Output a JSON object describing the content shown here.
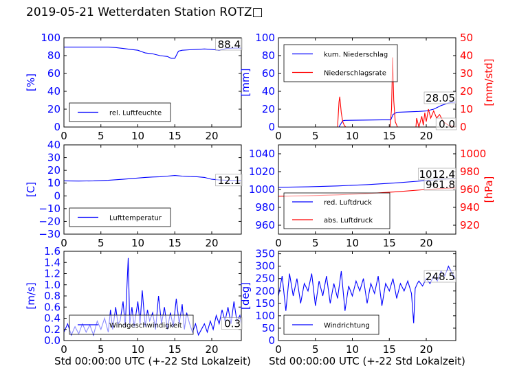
{
  "page_title": "2019-05-21 Wetterdaten Station ROTZ□",
  "colors": {
    "primary": "#0000ff",
    "secondary": "#ff0000",
    "axis": "#000000"
  },
  "chart_data": [
    {
      "id": "humidity",
      "type": "line",
      "ylabel": "[%]",
      "xlim": [
        0,
        24
      ],
      "ylim": [
        0,
        100
      ],
      "xticks": [
        "0",
        "5",
        "10",
        "15",
        "20"
      ],
      "yticks": [
        "0",
        "20",
        "40",
        "60",
        "80",
        "100"
      ],
      "legend": [
        "rel. Luftfeuchte"
      ],
      "current_label": "88.4",
      "series": [
        {
          "name": "rel. Luftfeuchte",
          "color": "#0000ff",
          "x": [
            0,
            2,
            4,
            6,
            7,
            8,
            9,
            10,
            11,
            12,
            13,
            14,
            14.5,
            15,
            15.5,
            16,
            17,
            18,
            19,
            20,
            21,
            22,
            23,
            24
          ],
          "y": [
            89.5,
            89.5,
            89.5,
            89.5,
            89,
            88,
            87,
            86,
            83,
            82,
            80,
            79,
            77,
            77,
            85,
            86,
            86.5,
            87,
            87.5,
            87,
            86,
            88,
            88.4,
            88.4
          ]
        }
      ]
    },
    {
      "id": "precip",
      "type": "line",
      "ylabel": "[mm]",
      "y2label": "[mm/std]",
      "xlim": [
        0,
        24
      ],
      "ylim": [
        0,
        100
      ],
      "y2lim": [
        0,
        50
      ],
      "xticks": [
        "0",
        "5",
        "10",
        "15",
        "20"
      ],
      "yticks": [
        "0",
        "20",
        "40",
        "60",
        "80",
        "100"
      ],
      "y2ticks": [
        "0",
        "10",
        "20",
        "30",
        "40",
        "50"
      ],
      "legend": [
        "kum. Niederschlag",
        "Niederschlagsrate"
      ],
      "current_labels": [
        "28.05",
        "0.0"
      ],
      "series": [
        {
          "name": "kum. Niederschlag",
          "color": "#0000ff",
          "axis": "left",
          "x": [
            0,
            8.2,
            8.4,
            8.7,
            9,
            14,
            15.2,
            15.5,
            16,
            19,
            20,
            21,
            22,
            23,
            24
          ],
          "y": [
            0,
            0,
            3,
            7,
            7.5,
            8,
            8,
            14,
            16.5,
            17.5,
            18,
            20,
            24,
            27,
            28.05
          ]
        },
        {
          "name": "Niederschlagsrate",
          "color": "#ff0000",
          "axis": "right",
          "x": [
            0,
            8.0,
            8.2,
            8.3,
            8.5,
            8.7,
            8.9,
            9.1,
            15.1,
            15.3,
            15.45,
            15.6,
            15.8,
            16.1,
            18.6,
            18.7,
            19.0,
            19.4,
            19.6,
            19.8,
            20.0,
            20.3,
            20.6,
            21.0,
            21.4,
            21.8,
            22.3,
            23.0,
            24.0
          ],
          "y": [
            0,
            0,
            14,
            17,
            8,
            3,
            1,
            0,
            0,
            10,
            39,
            15,
            3,
            0,
            0,
            5,
            0,
            6,
            1,
            8,
            3,
            10,
            5,
            9,
            5,
            7,
            3,
            1,
            0
          ]
        }
      ]
    },
    {
      "id": "temperature",
      "type": "line",
      "ylabel": "[C]",
      "xlim": [
        0,
        24
      ],
      "ylim": [
        -30,
        40
      ],
      "xticks": [
        "0",
        "5",
        "10",
        "15",
        "20"
      ],
      "yticks": [
        "−30",
        "−20",
        "−10",
        "0",
        "10",
        "20",
        "30",
        "40"
      ],
      "legend": [
        "Lufttemperatur"
      ],
      "current_label": "12.1",
      "series": [
        {
          "name": "Lufttemperatur",
          "color": "#0000ff",
          "x": [
            0,
            2,
            4,
            6,
            8,
            9,
            10,
            11,
            12,
            13,
            14,
            15,
            16,
            17,
            18,
            19,
            20,
            21,
            22,
            23,
            24
          ],
          "y": [
            11.8,
            11.6,
            11.8,
            12.2,
            13,
            13.5,
            14,
            14.5,
            14.8,
            15,
            15.5,
            16,
            15.5,
            15.2,
            15,
            14.5,
            13,
            12.5,
            12.2,
            12.1,
            12.1
          ]
        }
      ]
    },
    {
      "id": "pressure",
      "type": "line",
      "y2label": "[hPa]",
      "xlim": [
        0,
        24
      ],
      "ylim": [
        950,
        1050
      ],
      "y2lim": [
        910,
        1010
      ],
      "xticks": [
        "0",
        "5",
        "10",
        "15",
        "20"
      ],
      "yticks": [
        "960",
        "980",
        "1000",
        "1020",
        "1040"
      ],
      "y2ticks": [
        "920",
        "940",
        "960",
        "980",
        "1000"
      ],
      "legend": [
        "red. Luftdruck",
        "abs. Luftdruck"
      ],
      "current_labels": [
        "1012.4",
        "961.8"
      ],
      "series": [
        {
          "name": "red. Luftdruck",
          "color": "#0000ff",
          "axis": "left",
          "x": [
            0,
            4,
            8,
            12,
            16,
            20,
            22,
            24
          ],
          "y": [
            1002.5,
            1003,
            1004,
            1005.5,
            1007.5,
            1010,
            1011.5,
            1012.4
          ]
        },
        {
          "name": "abs. Luftdruck",
          "color": "#ff0000",
          "axis": "right",
          "x": [
            0,
            4,
            8,
            12,
            16,
            20,
            22,
            24
          ],
          "y": [
            952.5,
            953,
            954,
            955.5,
            957.5,
            960,
            961,
            961.8
          ]
        }
      ]
    },
    {
      "id": "wind",
      "type": "line",
      "ylabel": "[m/s]",
      "xlabel": "Std 00:00:00 UTC (+-22 Std Lokalzeit)",
      "xlim": [
        0,
        24
      ],
      "ylim": [
        0,
        1.6
      ],
      "xticks": [
        "0",
        "5",
        "10",
        "15",
        "20"
      ],
      "yticks": [
        "0.0",
        "0.2",
        "0.4",
        "0.6",
        "0.8",
        "1.0",
        "1.2",
        "1.4",
        "1.6"
      ],
      "legend": [
        "Windgeschwindigkeit"
      ],
      "current_label": "0.3",
      "series": [
        {
          "name": "Windgeschwindigkeit",
          "color": "#0000ff",
          "x": [
            0,
            0.5,
            1,
            1.5,
            2,
            2.5,
            3,
            3.5,
            4,
            4.5,
            5,
            5.5,
            6,
            6.3,
            6.6,
            7,
            7.3,
            7.6,
            8,
            8.3,
            8.5,
            8.7,
            8.9,
            9.2,
            9.5,
            10,
            10.3,
            10.6,
            11,
            11.3,
            11.6,
            12,
            12.4,
            12.8,
            13.2,
            13.6,
            14,
            14.4,
            14.8,
            15.2,
            15.6,
            16,
            16.3,
            16.6,
            17,
            17.4,
            17.8,
            18.2,
            18.6,
            19,
            19.4,
            19.8,
            20.2,
            20.6,
            21,
            21.4,
            21.8,
            22.2,
            22.6,
            23,
            23.4,
            23.8,
            24
          ],
          "y": [
            0.15,
            0.3,
            0.1,
            0.25,
            0.12,
            0.3,
            0.15,
            0.28,
            0.1,
            0.35,
            0.2,
            0.4,
            0.15,
            0.55,
            0.2,
            0.6,
            0.3,
            0.35,
            0.7,
            0.25,
            0.9,
            1.48,
            0.3,
            0.6,
            0.25,
            0.7,
            0.3,
            0.9,
            0.25,
            0.55,
            0.35,
            0.5,
            0.2,
            0.8,
            0.3,
            0.6,
            0.2,
            0.5,
            0.25,
            0.75,
            0.3,
            0.65,
            0.2,
            0.5,
            0.3,
            0.15,
            0.3,
            0.1,
            0.2,
            0.3,
            0.15,
            0.35,
            0.2,
            0.45,
            0.3,
            0.55,
            0.35,
            0.6,
            0.3,
            0.7,
            0.35,
            0.45,
            0.3
          ]
        }
      ]
    },
    {
      "id": "winddir",
      "type": "line",
      "ylabel": "[deg]",
      "xlabel": "Std 00:00:00 UTC (+-22 Std Lokalzeit)",
      "xlim": [
        0,
        24
      ],
      "ylim": [
        0,
        360
      ],
      "xticks": [
        "0",
        "5",
        "10",
        "15",
        "20"
      ],
      "yticks": [
        "0",
        "50",
        "100",
        "150",
        "200",
        "250",
        "300",
        "350"
      ],
      "legend": [
        "Windrichtung"
      ],
      "current_label": "248.5",
      "series": [
        {
          "name": "Windrichtung",
          "color": "#0000ff",
          "x": [
            0,
            0.5,
            1,
            1.5,
            2,
            2.5,
            3,
            3.5,
            4,
            4.5,
            5,
            5.5,
            6,
            6.5,
            7,
            7.5,
            8,
            8.5,
            9,
            9.5,
            10,
            10.5,
            11,
            11.5,
            12,
            12.5,
            13,
            13.5,
            14,
            14.5,
            15,
            15.5,
            16,
            16.5,
            17,
            17.5,
            18,
            18.3,
            18.5,
            18.8,
            19,
            19.5,
            20,
            20.5,
            21,
            21.5,
            22,
            22.5,
            23,
            23.5,
            24
          ],
          "y": [
            180,
            260,
            120,
            270,
            180,
            250,
            150,
            230,
            200,
            270,
            140,
            240,
            180,
            260,
            150,
            230,
            170,
            280,
            120,
            220,
            180,
            240,
            200,
            250,
            150,
            230,
            190,
            260,
            140,
            230,
            200,
            250,
            170,
            230,
            200,
            240,
            190,
            70,
            210,
            230,
            240,
            220,
            250,
            230,
            260,
            240,
            280,
            260,
            300,
            270,
            248.5
          ]
        }
      ]
    }
  ]
}
